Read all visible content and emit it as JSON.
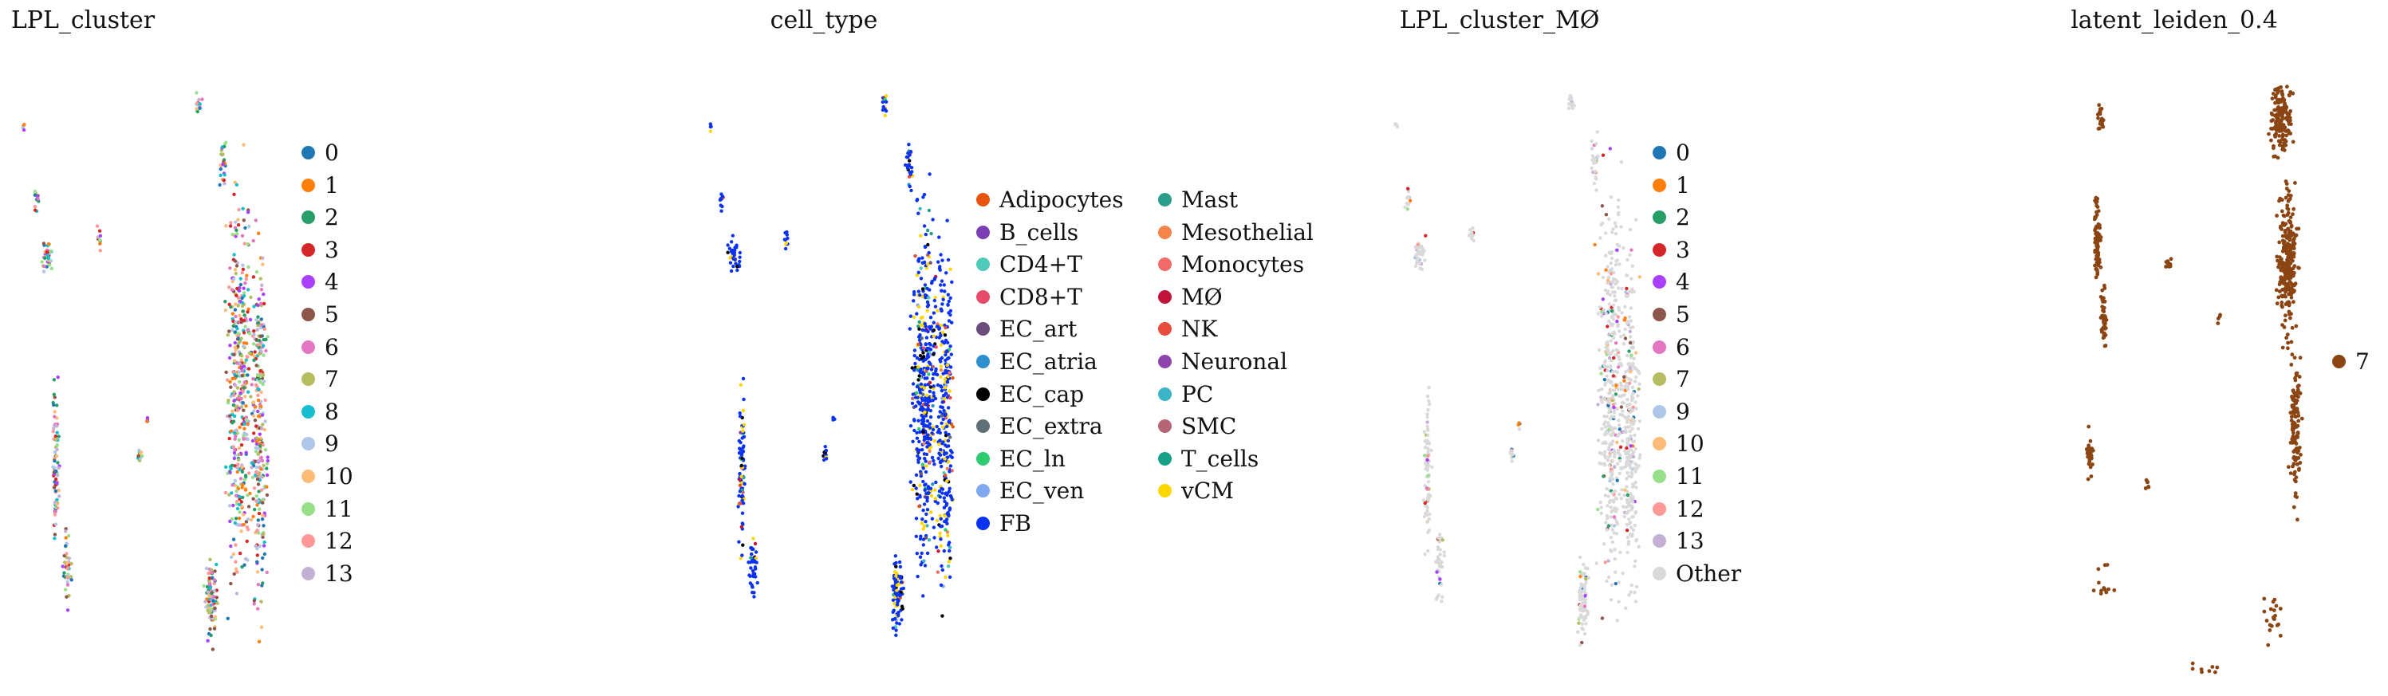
{
  "figure": "2D embedding scatter panels colored by annotation",
  "chart_data": [
    {
      "type": "scatter",
      "title": "LPL_cluster",
      "legend_position": "right",
      "grid": false,
      "axes_visible": false,
      "legend": [
        {
          "label": "0",
          "color": "#1f77b4"
        },
        {
          "label": "1",
          "color": "#ff7f0e"
        },
        {
          "label": "2",
          "color": "#279e68"
        },
        {
          "label": "3",
          "color": "#d62728"
        },
        {
          "label": "4",
          "color": "#aa40fc"
        },
        {
          "label": "5",
          "color": "#8c564b"
        },
        {
          "label": "6",
          "color": "#e377c2"
        },
        {
          "label": "7",
          "color": "#b5bd61"
        },
        {
          "label": "8",
          "color": "#17becf"
        },
        {
          "label": "9",
          "color": "#aec7e8"
        },
        {
          "label": "10",
          "color": "#ffbb78"
        },
        {
          "label": "11",
          "color": "#98df8a"
        },
        {
          "label": "12",
          "color": "#ff9896"
        },
        {
          "label": "13",
          "color": "#c5b0d5"
        }
      ]
    },
    {
      "type": "scatter",
      "title": "cell_type",
      "legend_position": "right",
      "grid": false,
      "axes_visible": false,
      "legend": [
        {
          "label": "Adipocytes",
          "color": "#e6550d"
        },
        {
          "label": "B_cells",
          "color": "#7b3fb5"
        },
        {
          "label": "CD4+T",
          "color": "#4fc9b8"
        },
        {
          "label": "CD8+T",
          "color": "#e84a6a"
        },
        {
          "label": "EC_art",
          "color": "#6b4c7a"
        },
        {
          "label": "EC_atria",
          "color": "#2e8fcf"
        },
        {
          "label": "EC_cap",
          "color": "#000000"
        },
        {
          "label": "EC_extra",
          "color": "#5f6f75"
        },
        {
          "label": "EC_ln",
          "color": "#2ecc71"
        },
        {
          "label": "EC_ven",
          "color": "#7fa8f0"
        },
        {
          "label": "FB",
          "color": "#0a32f0"
        },
        {
          "label": "Mast",
          "color": "#2a9d8f"
        },
        {
          "label": "Mesothelial",
          "color": "#f4844c"
        },
        {
          "label": "Monocytes",
          "color": "#f26b6b"
        },
        {
          "label": "MØ",
          "color": "#c0143c"
        },
        {
          "label": "NK",
          "color": "#e74c3c"
        },
        {
          "label": "Neuronal",
          "color": "#8e44ad"
        },
        {
          "label": "PC",
          "color": "#3cb4c8"
        },
        {
          "label": "SMC",
          "color": "#b56576"
        },
        {
          "label": "T_cells",
          "color": "#16a085"
        },
        {
          "label": "vCM",
          "color": "#ffd700"
        }
      ]
    },
    {
      "type": "scatter",
      "title": "LPL_cluster_MØ",
      "legend_position": "right",
      "grid": false,
      "axes_visible": false,
      "legend": [
        {
          "label": "0",
          "color": "#1f77b4"
        },
        {
          "label": "1",
          "color": "#ff7f0e"
        },
        {
          "label": "2",
          "color": "#279e68"
        },
        {
          "label": "3",
          "color": "#d62728"
        },
        {
          "label": "4",
          "color": "#aa40fc"
        },
        {
          "label": "5",
          "color": "#8c564b"
        },
        {
          "label": "6",
          "color": "#e377c2"
        },
        {
          "label": "7",
          "color": "#b5bd61"
        },
        {
          "label": "9",
          "color": "#aec7e8"
        },
        {
          "label": "10",
          "color": "#ffbb78"
        },
        {
          "label": "11",
          "color": "#98df8a"
        },
        {
          "label": "12",
          "color": "#ff9896"
        },
        {
          "label": "13",
          "color": "#c5b0d5"
        },
        {
          "label": "Other",
          "color": "#d9d9d9"
        }
      ]
    },
    {
      "type": "scatter",
      "title": "latent_leiden_0.4",
      "legend_position": "right",
      "grid": false,
      "axes_visible": false,
      "legend": [
        {
          "label": "7",
          "color": "#8b4513"
        }
      ]
    }
  ]
}
